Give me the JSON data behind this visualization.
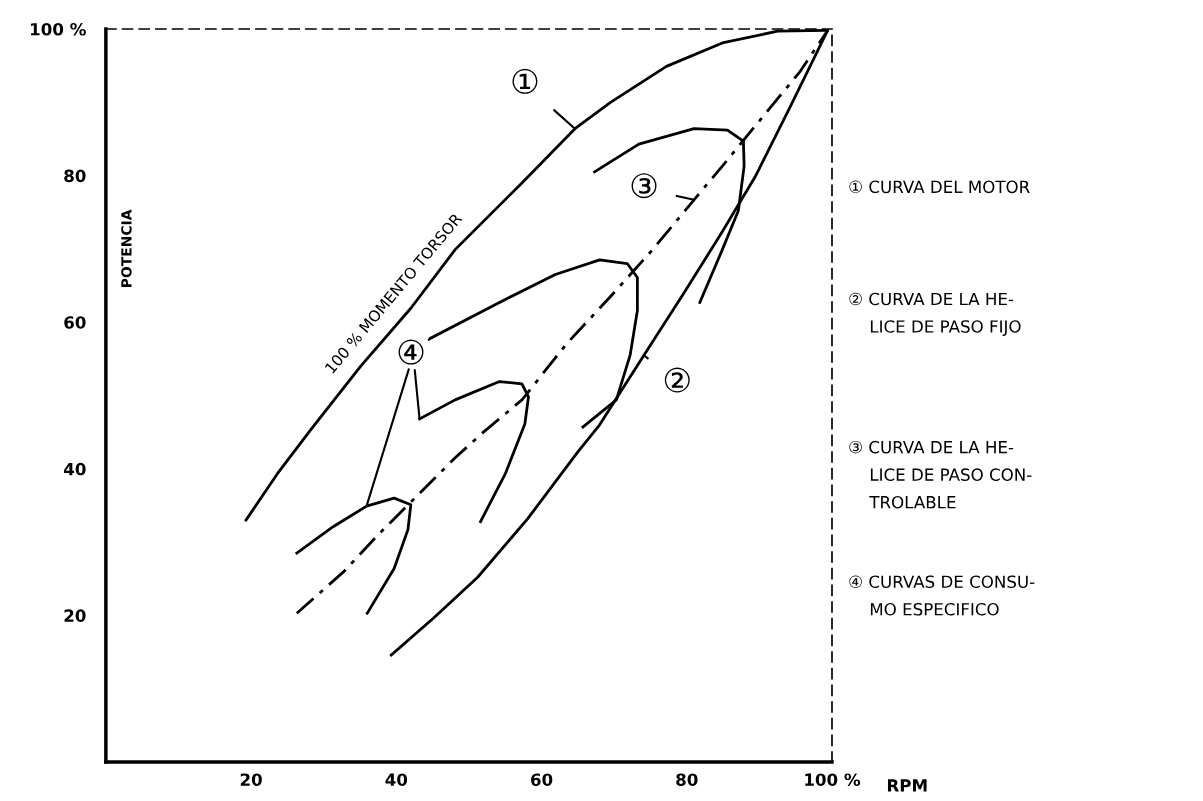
{
  "chart_data": {
    "type": "line",
    "xlabel": "RPM",
    "ylabel": "POTENCIA",
    "xlim": [
      0,
      100
    ],
    "ylim": [
      0,
      100
    ],
    "xticks": [
      20,
      40,
      60,
      80,
      {
        "value": 100,
        "label": "100 %"
      }
    ],
    "yticks": [
      20,
      40,
      60,
      80,
      {
        "value": 100,
        "label": "100 %"
      }
    ],
    "grid": false,
    "legend": false,
    "marker": "none",
    "series": [
      {
        "color": "#000000",
        "line_style": "solid",
        "x": [
          19.3,
          23.6,
          28.2,
          35.1,
          42.0,
          48.1,
          57.3,
          64.6,
          69.5,
          77.2,
          84.9,
          92.5,
          99.0
        ],
        "values": [
          33.0,
          39.3,
          45.3,
          54.0,
          61.9,
          69.9,
          79.0,
          86.4,
          90.0,
          94.9,
          98.1,
          99.7,
          99.8
        ]
      },
      {
        "color": "#000000",
        "line_style": "solid",
        "x": [
          39.3,
          45.1,
          51.2,
          58.1,
          65.0,
          68.0,
          74.1,
          79.5,
          84.8,
          89.4,
          94.0,
          99.4
        ],
        "values": [
          14.6,
          19.6,
          25.2,
          33.2,
          42.3,
          46.0,
          55.5,
          63.8,
          72.2,
          79.8,
          88.9,
          99.8
        ]
      },
      {
        "color": "#000000",
        "line_style": "dashed",
        "x": [
          26.3,
          32.8,
          37.4,
          48.1,
          52.0,
          57.3,
          63.4,
          69.5,
          75.3,
          81.0,
          84.9,
          90.2,
          95.6,
          99.4
        ],
        "values": [
          20.3,
          26.0,
          30.9,
          41.5,
          45.0,
          49.4,
          57.0,
          63.5,
          69.9,
          76.7,
          81.3,
          87.7,
          94.2,
          99.8
        ]
      },
      {
        "color": "#000000",
        "line_style": "solid",
        "x": [
          26.3,
          31.3,
          35.9,
          39.7,
          42.0,
          41.6,
          39.7,
          36.0
        ],
        "values": [
          28.5,
          32.1,
          34.9,
          36.0,
          35.1,
          31.7,
          26.4,
          20.3
        ]
      },
      {
        "color": "#000000",
        "line_style": "solid",
        "x": [
          43.2,
          48.1,
          54.2,
          57.3,
          58.2,
          57.7,
          55.0,
          51.6
        ],
        "values": [
          46.8,
          49.4,
          51.9,
          51.6,
          49.8,
          46.1,
          39.3,
          32.8
        ]
      },
      {
        "color": "#000000",
        "line_style": "solid",
        "x": [
          44.7,
          54.2,
          61.9,
          68.0,
          71.8,
          73.2,
          73.2,
          72.2,
          70.3,
          65.7
        ],
        "values": [
          57.8,
          62.7,
          66.5,
          68.5,
          68.0,
          66.1,
          61.6,
          55.5,
          49.4,
          45.7
        ]
      },
      {
        "color": "#000000",
        "line_style": "solid",
        "x": [
          67.3,
          73.4,
          81.0,
          85.6,
          87.8,
          87.9,
          87.1,
          84.9,
          81.8
        ],
        "values": [
          80.5,
          84.3,
          86.4,
          86.2,
          84.7,
          81.3,
          75.2,
          69.9,
          62.7
        ]
      }
    ],
    "annotations": [
      {
        "text": "100 % MOMENTO TORSOR",
        "x": 42.0,
        "y": 61.9
      },
      {
        "text": "①",
        "x": 64.6,
        "y": 86.4
      },
      {
        "text": "③",
        "x": 81.0,
        "y": 76.7
      },
      {
        "text": "②",
        "x": 74.1,
        "y": 55.5
      },
      {
        "text": "④",
        "x": 44.7,
        "y": 57.8
      },
      "① CURVA DEL MOTOR",
      "② CURVA DE LA HE-\n    LICE DE PASO FIJO",
      "③ CURVA DE LA HE-\n    LICE DE PASO CON-\n    TROLABLE",
      "④ CURVAS DE CONSU-\n    MO ESPECIFICO"
    ]
  }
}
